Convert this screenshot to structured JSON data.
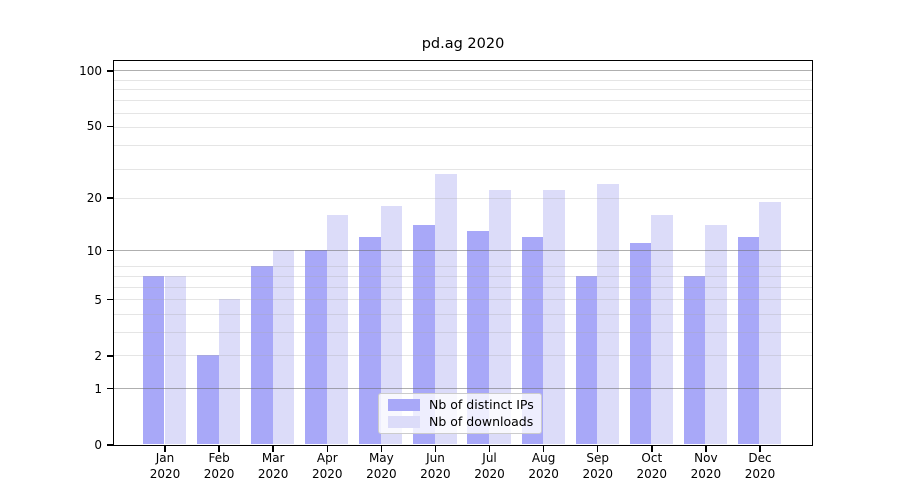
{
  "title": "pd.ag 2020",
  "year_label": "2020",
  "chart_data": {
    "type": "bar",
    "title": "pd.ag 2020",
    "categories": [
      "Jan 2020",
      "Feb 2020",
      "Mar 2020",
      "Apr 2020",
      "May 2020",
      "Jun 2020",
      "Jul 2020",
      "Aug 2020",
      "Sep 2020",
      "Oct 2020",
      "Nov 2020",
      "Dec 2020"
    ],
    "x_tick_months": [
      "Jan",
      "Feb",
      "Mar",
      "Apr",
      "May",
      "Jun",
      "Jul",
      "Aug",
      "Sep",
      "Oct",
      "Nov",
      "Dec"
    ],
    "series": [
      {
        "name": "Nb of distinct IPs",
        "color": "#a8a8f8",
        "values": [
          7,
          2,
          8,
          10,
          12,
          14,
          13,
          12,
          7,
          11,
          7,
          12
        ]
      },
      {
        "name": "Nb of downloads",
        "color": "#dcdcf9",
        "values": [
          7,
          5,
          10,
          16,
          18,
          27,
          22,
          22,
          24,
          16,
          14,
          19
        ]
      }
    ],
    "y_scale": "log10(1+x)",
    "y_ticks": [
      100,
      50,
      20,
      10,
      5,
      2,
      1,
      0
    ],
    "y_major_gridlines": [
      1,
      10,
      100
    ],
    "y_minor_gridlines": [
      2,
      3,
      4,
      5,
      6,
      7,
      8,
      20,
      29,
      39,
      49,
      59,
      69,
      79,
      89
    ],
    "ylim": [
      0,
      113
    ],
    "grid": true,
    "legend_position": "lower center",
    "xlabel": "",
    "ylabel": ""
  },
  "legend": {
    "items": [
      {
        "label": "Nb of distinct IPs",
        "color": "#a8a8f8"
      },
      {
        "label": "Nb of downloads",
        "color": "#dcdcf9"
      }
    ]
  },
  "colors": {
    "background": "#ffffff",
    "spine": "#000000",
    "major_grid": "#6e6e6e",
    "minor_grid": "#ebebeb",
    "text": "#000000"
  }
}
